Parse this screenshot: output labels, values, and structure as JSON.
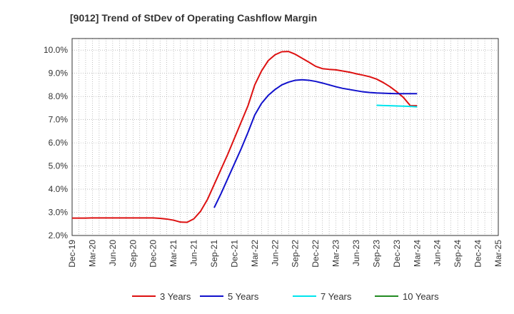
{
  "chart_data": {
    "type": "line",
    "title": "[9012]  Trend of StDev of Operating Cashflow Margin",
    "xlabel": "",
    "ylabel": "",
    "ylim": [
      2.0,
      10.5
    ],
    "y_ticks": [
      "2.0%",
      "3.0%",
      "4.0%",
      "5.0%",
      "6.0%",
      "7.0%",
      "8.0%",
      "9.0%",
      "10.0%"
    ],
    "y_tick_values": [
      2,
      3,
      4,
      5,
      6,
      7,
      8,
      9,
      10
    ],
    "x_ticks": [
      "Dec-19",
      "Mar-20",
      "Jun-20",
      "Sep-20",
      "Dec-20",
      "Mar-21",
      "Jun-21",
      "Sep-21",
      "Dec-21",
      "Mar-22",
      "Jun-22",
      "Sep-22",
      "Dec-22",
      "Mar-23",
      "Jun-23",
      "Sep-23",
      "Dec-23",
      "Mar-24",
      "Jun-24",
      "Sep-24",
      "Dec-24",
      "Mar-25"
    ],
    "grid": true,
    "legend_position": "bottom",
    "series": [
      {
        "name": "3 Years",
        "color": "#dd1111",
        "x": [
          "Dec-19",
          "Jan-20",
          "Feb-20",
          "Mar-20",
          "Apr-20",
          "May-20",
          "Jun-20",
          "Jul-20",
          "Aug-20",
          "Sep-20",
          "Oct-20",
          "Nov-20",
          "Dec-20",
          "Jan-21",
          "Feb-21",
          "Mar-21",
          "Apr-21",
          "May-21",
          "Jun-21",
          "Jul-21",
          "Aug-21",
          "Sep-21",
          "Oct-21",
          "Nov-21",
          "Dec-21",
          "Jan-22",
          "Feb-22",
          "Mar-22",
          "Apr-22",
          "May-22",
          "Jun-22",
          "Jul-22",
          "Aug-22",
          "Sep-22",
          "Oct-22",
          "Nov-22",
          "Dec-22",
          "Jan-23",
          "Feb-23",
          "Mar-23",
          "Apr-23",
          "May-23",
          "Jun-23",
          "Jul-23",
          "Aug-23",
          "Sep-23",
          "Oct-23",
          "Nov-23",
          "Dec-23",
          "Jan-24",
          "Feb-24",
          "Mar-24"
        ],
        "values": [
          2.75,
          2.75,
          2.75,
          2.76,
          2.76,
          2.76,
          2.76,
          2.76,
          2.76,
          2.76,
          2.76,
          2.76,
          2.76,
          2.74,
          2.71,
          2.66,
          2.58,
          2.57,
          2.72,
          3.05,
          3.55,
          4.2,
          4.85,
          5.5,
          6.2,
          6.9,
          7.6,
          8.5,
          9.1,
          9.55,
          9.8,
          9.93,
          9.94,
          9.82,
          9.65,
          9.48,
          9.3,
          9.2,
          9.17,
          9.15,
          9.1,
          9.05,
          8.98,
          8.92,
          8.85,
          8.75,
          8.6,
          8.42,
          8.2,
          7.95,
          7.6,
          7.6
        ]
      },
      {
        "name": "5 Years",
        "color": "#1111cc",
        "x": [
          "Sep-21",
          "Oct-21",
          "Nov-21",
          "Dec-21",
          "Jan-22",
          "Feb-22",
          "Mar-22",
          "Apr-22",
          "May-22",
          "Jun-22",
          "Jul-22",
          "Aug-22",
          "Sep-22",
          "Oct-22",
          "Nov-22",
          "Dec-22",
          "Jan-23",
          "Feb-23",
          "Mar-23",
          "Apr-23",
          "May-23",
          "Jun-23",
          "Jul-23",
          "Aug-23",
          "Sep-23",
          "Oct-23",
          "Nov-23",
          "Dec-23",
          "Jan-24",
          "Feb-24",
          "Mar-24"
        ],
        "values": [
          3.2,
          3.8,
          4.45,
          5.1,
          5.75,
          6.45,
          7.2,
          7.7,
          8.05,
          8.3,
          8.5,
          8.62,
          8.7,
          8.72,
          8.7,
          8.65,
          8.58,
          8.5,
          8.42,
          8.35,
          8.3,
          8.25,
          8.2,
          8.17,
          8.15,
          8.14,
          8.13,
          8.12,
          8.12,
          8.12,
          8.12
        ]
      },
      {
        "name": "7 Years",
        "color": "#00e5ee",
        "x": [
          "Sep-23",
          "Oct-23",
          "Nov-23",
          "Dec-23",
          "Jan-24",
          "Feb-24",
          "Mar-24"
        ],
        "values": [
          7.62,
          7.61,
          7.6,
          7.59,
          7.58,
          7.57,
          7.55
        ]
      },
      {
        "name": "10 Years",
        "color": "#228b22",
        "x": [],
        "values": []
      }
    ]
  }
}
